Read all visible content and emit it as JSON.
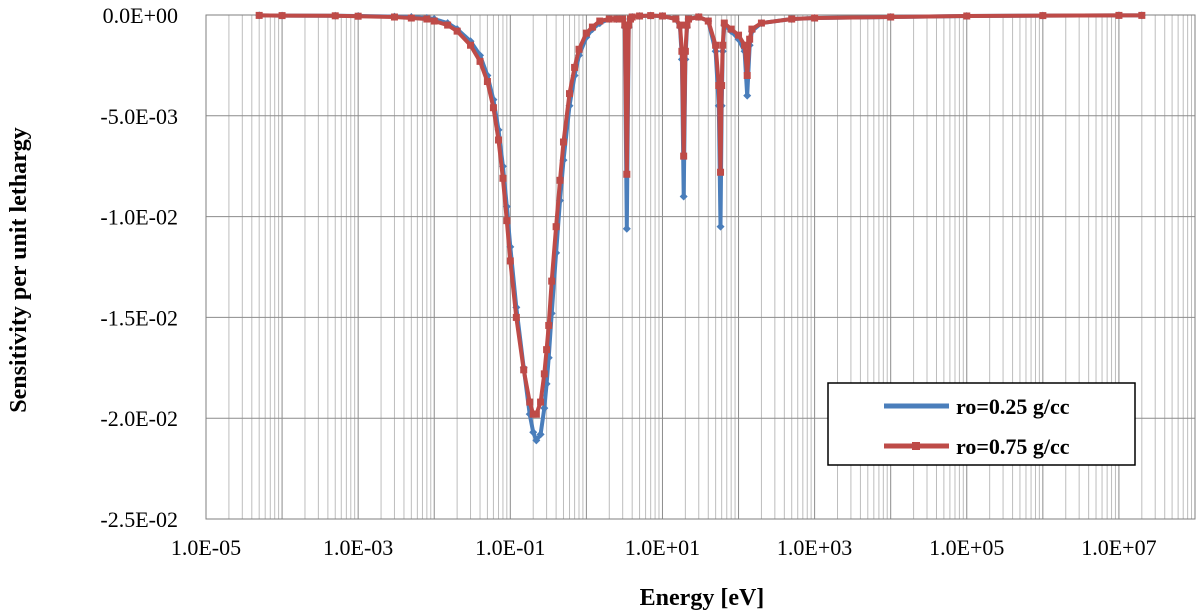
{
  "chart_data": {
    "type": "line",
    "xlabel": "Energy [eV]",
    "ylabel": "Sensitivity per unit lethargy",
    "x_scale": "log",
    "xlim": [
      1e-05,
      100000000
    ],
    "ylim": [
      -0.025,
      0.0
    ],
    "x_tick_values": [
      1e-05,
      0.001,
      0.1,
      10,
      1000,
      100000,
      10000000
    ],
    "x_tick_labels": [
      "1.0E-05",
      "1.0E-03",
      "1.0E-01",
      "1.0E+01",
      "1.0E+03",
      "1.0E+05",
      "1.0E+07"
    ],
    "y_tick_values": [
      0.0,
      -0.005,
      -0.01,
      -0.015,
      -0.02,
      -0.025
    ],
    "y_tick_labels": [
      "0.0E+00",
      "-5.0E-03",
      "-1.0E-02",
      "-1.5E-02",
      "-2.0E-02",
      "-2.5E-02"
    ],
    "grid": true,
    "minor_x_grid": true,
    "legend_position": "bottom-right",
    "series": [
      {
        "name": "ro=0.25 g/cc",
        "color": "#4a7ebb",
        "marker": "diamond",
        "x": [
          5e-05,
          0.0001,
          0.0005,
          0.001,
          0.003,
          0.005,
          0.008,
          0.01,
          0.015,
          0.02,
          0.03,
          0.04,
          0.05,
          0.06,
          0.07,
          0.08,
          0.09,
          0.1,
          0.12,
          0.15,
          0.18,
          0.2,
          0.22,
          0.25,
          0.28,
          0.3,
          0.32,
          0.35,
          0.4,
          0.45,
          0.5,
          0.6,
          0.7,
          0.8,
          1.0,
          1.2,
          1.5,
          2.0,
          2.5,
          3.0,
          3.2,
          3.4,
          3.6,
          3.8,
          4.0,
          5.0,
          7.0,
          10.0,
          15.0,
          17.0,
          18.0,
          19.0,
          20.0,
          21.0,
          22.0,
          30.0,
          40.0,
          50.0,
          55.0,
          58.0,
          60.0,
          62.0,
          65.0,
          80.0,
          100.0,
          120.0,
          130.0,
          140.0,
          150.0,
          200.0,
          500.0,
          1000.0,
          10000.0,
          100000.0,
          1000000.0,
          10000000.0,
          20000000.0
        ],
        "y": [
          -2e-05,
          -3e-05,
          -4e-05,
          -5e-05,
          -8e-05,
          -0.0001,
          -0.00015,
          -0.0002,
          -0.0004,
          -0.0007,
          -0.0013,
          -0.002,
          -0.003,
          -0.0042,
          -0.0057,
          -0.0075,
          -0.0095,
          -0.0115,
          -0.0145,
          -0.0175,
          -0.0198,
          -0.0207,
          -0.0211,
          -0.0208,
          -0.0195,
          -0.0183,
          -0.017,
          -0.0148,
          -0.0118,
          -0.0092,
          -0.0072,
          -0.0045,
          -0.003,
          -0.002,
          -0.0011,
          -0.0007,
          -0.0004,
          -0.0002,
          -0.0002,
          -0.0002,
          -0.0006,
          -0.0106,
          -0.0006,
          -0.0002,
          -0.0001,
          -5e-05,
          -3e-05,
          -5e-05,
          -0.0002,
          -0.0006,
          -0.0022,
          -0.009,
          -0.0022,
          -0.0006,
          -0.0002,
          -0.0001,
          -0.0003,
          -0.0018,
          -0.0045,
          -0.0105,
          -0.0045,
          -0.0018,
          -0.0005,
          -0.0008,
          -0.0012,
          -0.0018,
          -0.004,
          -0.0015,
          -0.0008,
          -0.0004,
          -0.0002,
          -0.00015,
          -0.0001,
          -5e-05,
          -3e-05,
          -2e-05,
          -2e-05
        ]
      },
      {
        "name": "ro=0.75 g/cc",
        "color": "#be4b48",
        "marker": "square",
        "x": [
          5e-05,
          0.0001,
          0.0005,
          0.001,
          0.003,
          0.005,
          0.008,
          0.01,
          0.015,
          0.02,
          0.03,
          0.04,
          0.05,
          0.06,
          0.07,
          0.08,
          0.09,
          0.1,
          0.12,
          0.15,
          0.18,
          0.2,
          0.22,
          0.25,
          0.28,
          0.3,
          0.32,
          0.35,
          0.4,
          0.45,
          0.5,
          0.6,
          0.7,
          0.8,
          1.0,
          1.2,
          1.5,
          2.0,
          2.5,
          3.0,
          3.2,
          3.4,
          3.6,
          3.8,
          4.0,
          5.0,
          7.0,
          10.0,
          15.0,
          17.0,
          18.0,
          19.0,
          20.0,
          21.0,
          22.0,
          30.0,
          40.0,
          50.0,
          55.0,
          58.0,
          60.0,
          62.0,
          65.0,
          80.0,
          100.0,
          120.0,
          130.0,
          140.0,
          150.0,
          200.0,
          500.0,
          1000.0,
          10000.0,
          100000.0,
          1000000.0,
          10000000.0,
          20000000.0
        ],
        "y": [
          -2e-05,
          -3e-05,
          -4e-05,
          -6e-05,
          -0.0001,
          -0.00015,
          -0.0002,
          -0.0003,
          -0.0005,
          -0.0008,
          -0.0015,
          -0.0023,
          -0.0033,
          -0.0046,
          -0.0062,
          -0.0081,
          -0.0102,
          -0.0122,
          -0.015,
          -0.0176,
          -0.0192,
          -0.0198,
          -0.0198,
          -0.0192,
          -0.0178,
          -0.0166,
          -0.0154,
          -0.0132,
          -0.0105,
          -0.0082,
          -0.0063,
          -0.0039,
          -0.0026,
          -0.0017,
          -0.0009,
          -0.0006,
          -0.0003,
          -0.0002,
          -0.0002,
          -0.0002,
          -0.0005,
          -0.0079,
          -0.0005,
          -0.0002,
          -0.0001,
          -5e-05,
          -3e-05,
          -5e-05,
          -0.0002,
          -0.0005,
          -0.0018,
          -0.007,
          -0.0018,
          -0.0005,
          -0.0002,
          -0.0001,
          -0.0003,
          -0.0015,
          -0.0035,
          -0.0078,
          -0.0035,
          -0.0015,
          -0.0004,
          -0.0007,
          -0.001,
          -0.0015,
          -0.003,
          -0.0012,
          -0.0007,
          -0.0004,
          -0.0002,
          -0.00015,
          -0.0001,
          -5e-05,
          -3e-05,
          -2e-05,
          -2e-05
        ]
      }
    ]
  }
}
